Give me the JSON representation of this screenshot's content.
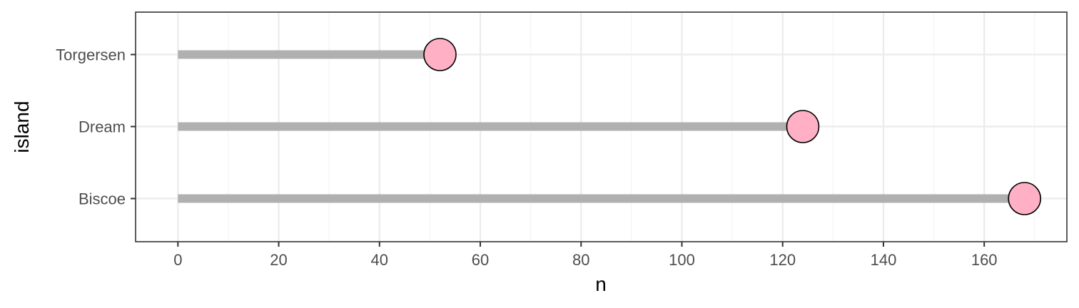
{
  "chart_data": {
    "type": "lollipop",
    "title": "",
    "xlabel": "n",
    "ylabel": "island",
    "categories": [
      "Biscoe",
      "Dream",
      "Torgersen"
    ],
    "values": [
      168,
      124,
      52
    ],
    "xlim": [
      -8.4,
      176.4
    ],
    "x_ticks": [
      0,
      20,
      40,
      60,
      80,
      100,
      120,
      140,
      160
    ],
    "x_tick_labels": [
      "0",
      "20",
      "40",
      "60",
      "80",
      "100",
      "120",
      "140",
      "160"
    ],
    "grid": true,
    "legend": "none",
    "colors": {
      "stem": "#b0b0b0",
      "point_fill": "#ffb0c4",
      "point_stroke": "#000000",
      "grid_major": "#ebebeb",
      "grid_minor": "#f4f4f4",
      "panel_border": "#333333"
    }
  }
}
